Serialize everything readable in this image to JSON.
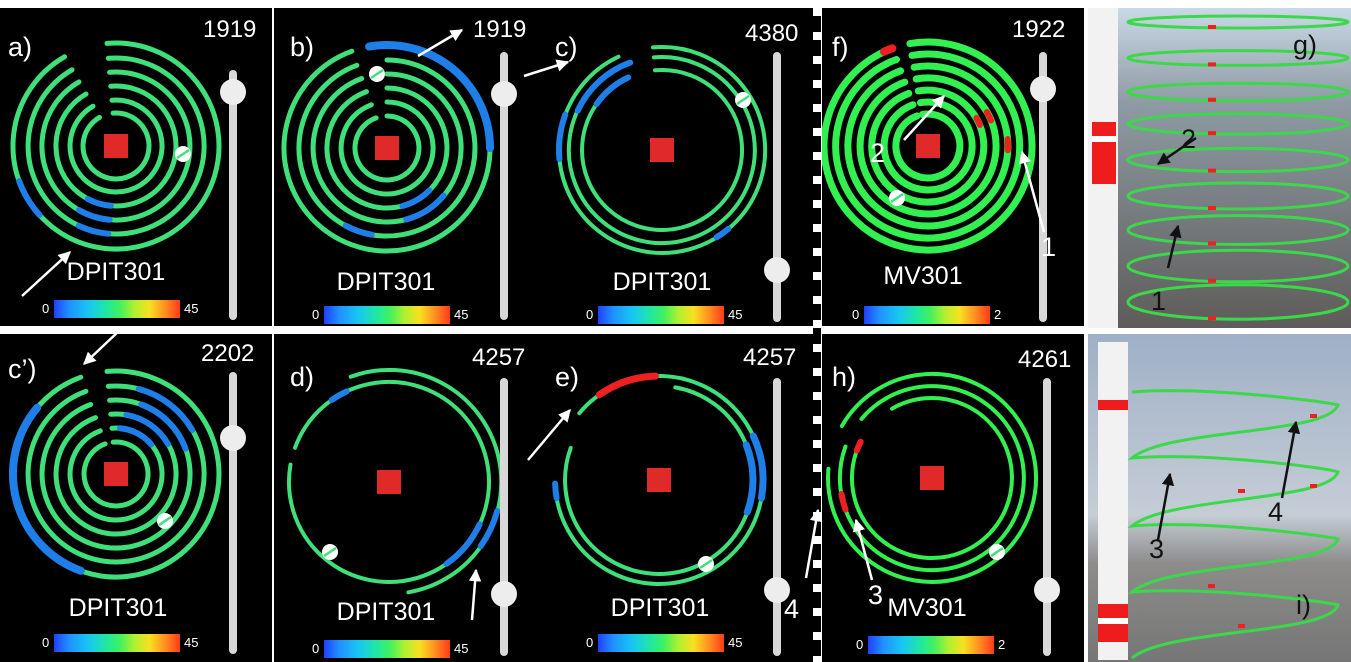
{
  "panels": {
    "a": {
      "label": "a)",
      "frame": "1919",
      "sensor": "DPIT301",
      "cb_min": "0",
      "cb_max": "45"
    },
    "b": {
      "label": "b)",
      "frame": "1919",
      "sensor": "DPIT301",
      "cb_min": "0",
      "cb_max": "45"
    },
    "c": {
      "label": "c)",
      "frame": "4380",
      "sensor": "DPIT301",
      "cb_min": "0",
      "cb_max": "45"
    },
    "f": {
      "label": "f)",
      "frame": "1922",
      "sensor": "MV301",
      "cb_min": "0",
      "cb_max": "2",
      "marker1": "1",
      "marker2": "2"
    },
    "g": {
      "label": "g)",
      "marker1": "1",
      "marker2": "2"
    },
    "cp": {
      "label": "c’)",
      "frame": "2202",
      "sensor": "DPIT301",
      "cb_min": "0",
      "cb_max": "45"
    },
    "d": {
      "label": "d)",
      "frame": "4257",
      "sensor": "DPIT301",
      "cb_min": "0",
      "cb_max": "45"
    },
    "e": {
      "label": "e)",
      "frame": "4257",
      "sensor": "DPIT301",
      "cb_min": "0",
      "cb_max": "45",
      "marker4": "4"
    },
    "h": {
      "label": "h)",
      "frame": "4261",
      "sensor": "MV301",
      "cb_min": "0",
      "cb_max": "2",
      "marker3": "3"
    },
    "i": {
      "label": "i)",
      "marker3": "3",
      "marker4": "4"
    }
  },
  "colors": {
    "trace": "#3fe07a",
    "trace_bright": "#32f050",
    "low_value": "#1e7fe8",
    "high_value": "#ee2020",
    "center_marker": "#e02a2a",
    "slider": "#d8d8d8"
  },
  "icons": [
    "arrow-icon",
    "center-square-icon",
    "playhead-marker-icon",
    "slider-knob-icon"
  ]
}
